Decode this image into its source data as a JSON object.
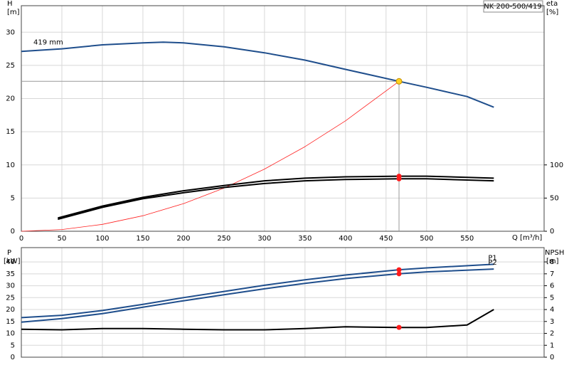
{
  "chart_data": [
    {
      "type": "line",
      "title": "NK 200-500/419",
      "y_label": "H",
      "y_unit": "[m]",
      "y2_label": "eta",
      "y2_unit": "[%]",
      "x_label": "Q [m³/h]",
      "xlim": [
        0,
        645
      ],
      "xticks": [
        0,
        50,
        100,
        150,
        200,
        250,
        300,
        350,
        400,
        450,
        500,
        550
      ],
      "ylim": [
        0,
        34
      ],
      "yticks": [
        0,
        5,
        10,
        15,
        20,
        25,
        30
      ],
      "y2lim": [
        0,
        340
      ],
      "y2ticks": [
        0,
        50,
        100
      ],
      "grid": true,
      "operating_point": {
        "x": 466,
        "y": 22.6,
        "color": "#ffd21f"
      },
      "series": [
        {
          "name": "419 mm",
          "color": "#1f4e8c",
          "axis": "y",
          "x": [
            0,
            50,
            100,
            150,
            175,
            200,
            250,
            300,
            350,
            400,
            466,
            500,
            550,
            583
          ],
          "values": [
            27.1,
            27.5,
            28.1,
            28.4,
            28.5,
            28.4,
            27.8,
            26.9,
            25.8,
            24.4,
            22.6,
            21.7,
            20.3,
            18.7
          ]
        },
        {
          "color": "#ff2020",
          "axis": "y",
          "x": [
            0,
            50,
            100,
            150,
            200,
            250,
            300,
            350,
            400,
            466
          ],
          "values": [
            0,
            0.26,
            1.04,
            2.34,
            4.16,
            6.5,
            9.37,
            12.75,
            16.65,
            22.6
          ]
        },
        {
          "color": "#000000",
          "axis": "y2",
          "x": [
            45,
            100,
            150,
            200,
            250,
            300,
            350,
            400,
            466,
            500,
            583
          ],
          "values": [
            20,
            38,
            51,
            61,
            69,
            76,
            80,
            82,
            83,
            83,
            80
          ]
        },
        {
          "color": "#000000",
          "axis": "y2",
          "x": [
            45,
            100,
            150,
            200,
            250,
            300,
            350,
            400,
            466,
            500,
            583
          ],
          "values": [
            18,
            36,
            49,
            58,
            66,
            72,
            76,
            78,
            79,
            79,
            76
          ]
        }
      ]
    },
    {
      "type": "line",
      "y_label": "P",
      "y_unit": "[kW]",
      "y2_label": "NPSH",
      "y2_unit": "[m]",
      "xlim": [
        0,
        645
      ],
      "ylim": [
        0,
        46
      ],
      "yticks": [
        0,
        5,
        10,
        15,
        20,
        25,
        30,
        35,
        40
      ],
      "y2lim": [
        0,
        9.2
      ],
      "y2ticks": [
        0,
        1,
        2,
        3,
        4,
        5,
        6,
        7,
        8
      ],
      "grid": true,
      "operating_point": {
        "x": 466
      },
      "series": [
        {
          "name": "P1",
          "color": "#1f4e8c",
          "axis": "y",
          "x": [
            0,
            50,
            100,
            150,
            200,
            250,
            300,
            350,
            400,
            466,
            500,
            583
          ],
          "values": [
            16.6,
            17.6,
            19.6,
            22.2,
            25,
            27.6,
            30.2,
            32.5,
            34.5,
            36.7,
            37.5,
            39
          ]
        },
        {
          "name": "P2",
          "color": "#1f4e8c",
          "axis": "y",
          "x": [
            0,
            50,
            100,
            150,
            200,
            250,
            300,
            350,
            400,
            466,
            500,
            583
          ],
          "values": [
            14.7,
            16.2,
            18.3,
            21,
            23.7,
            26.2,
            28.7,
            31,
            33,
            35,
            35.8,
            37
          ]
        },
        {
          "color": "#000000",
          "axis": "y2",
          "x": [
            0,
            50,
            100,
            150,
            200,
            250,
            300,
            350,
            400,
            466,
            500,
            550,
            583
          ],
          "values": [
            2.35,
            2.3,
            2.4,
            2.4,
            2.35,
            2.3,
            2.3,
            2.4,
            2.55,
            2.5,
            2.5,
            2.7,
            4.0
          ]
        }
      ]
    }
  ]
}
